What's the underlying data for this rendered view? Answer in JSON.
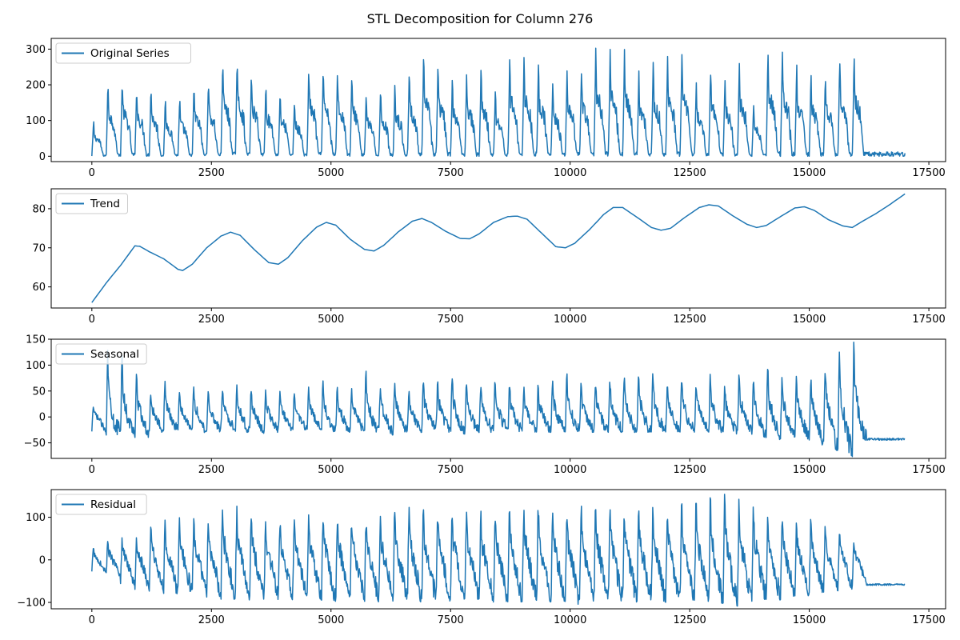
{
  "figure": {
    "title": "STL Decomposition for Column 276"
  },
  "colors": {
    "series": "#1f77b4",
    "axis": "#000000",
    "legend_border": "#cccccc"
  },
  "chart_data": [
    {
      "type": "line",
      "name": "original",
      "legend": "Original Series",
      "xlim": [
        -850,
        17850
      ],
      "ylim": [
        -15,
        330
      ],
      "x_ticks": [
        0,
        2500,
        5000,
        7500,
        10000,
        12500,
        15000,
        17500
      ],
      "y_ticks": [
        0,
        100,
        200,
        300
      ],
      "x_range": [
        0,
        17000
      ],
      "n_points": 1700,
      "cycle_length": 300,
      "cycle_min": 0,
      "peaks": [
        100,
        215,
        225,
        205,
        200,
        160,
        165,
        205,
        215,
        270,
        275,
        240,
        200,
        185,
        160,
        260,
        250,
        255,
        235,
        180,
        190,
        210,
        240,
        285,
        260,
        220,
        240,
        250,
        190,
        280,
        285,
        265,
        205,
        245,
        250,
        310,
        300,
        300,
        240,
        265,
        285,
        290,
        210,
        260,
        230,
        265,
        145,
        310,
        295,
        260,
        240,
        240,
        285,
        290
      ],
      "grid": false,
      "legend_position": "upper-left"
    },
    {
      "type": "line",
      "name": "trend",
      "legend": "Trend",
      "xlim": [
        -850,
        17850
      ],
      "ylim": [
        54.6,
        85.1
      ],
      "x_ticks": [
        0,
        2500,
        5000,
        7500,
        10000,
        12500,
        15000,
        17500
      ],
      "y_ticks": [
        60,
        70,
        80
      ],
      "x": [
        0,
        300,
        600,
        900,
        1000,
        1200,
        1500,
        1800,
        1900,
        2100,
        2400,
        2700,
        2900,
        3100,
        3400,
        3700,
        3900,
        4100,
        4400,
        4700,
        4900,
        5100,
        5400,
        5700,
        5900,
        6100,
        6400,
        6700,
        6900,
        7100,
        7400,
        7700,
        7900,
        8100,
        8400,
        8700,
        8900,
        9100,
        9400,
        9700,
        9900,
        10100,
        10400,
        10700,
        10900,
        11100,
        11400,
        11700,
        11900,
        12100,
        12400,
        12700,
        12900,
        13100,
        13400,
        13700,
        13900,
        14100,
        14400,
        14700,
        14900,
        15100,
        15400,
        15700,
        15900,
        16100,
        16400,
        16700,
        17000
      ],
      "y": [
        56,
        61,
        65.5,
        70.5,
        70.4,
        69,
        67.2,
        64.5,
        64.2,
        65.8,
        70,
        73,
        74,
        73.2,
        69.5,
        66.2,
        65.8,
        67.5,
        71.8,
        75.3,
        76.5,
        75.8,
        72.2,
        69.6,
        69.2,
        70.6,
        74,
        76.8,
        77.5,
        76.5,
        74.2,
        72.4,
        72.3,
        73.6,
        76.5,
        78,
        78.1,
        77.3,
        73.8,
        70.3,
        70,
        71.2,
        74.6,
        78.5,
        80.3,
        80.3,
        77.8,
        75.2,
        74.5,
        75,
        77.8,
        80.3,
        81,
        80.7,
        78.2,
        76,
        75.2,
        75.7,
        78,
        80.2,
        80.5,
        79.6,
        77.2,
        75.6,
        75.2,
        76.7,
        78.8,
        81.2,
        83.8
      ],
      "grid": false,
      "legend_position": "upper-left"
    },
    {
      "type": "line",
      "name": "seasonal",
      "legend": "Seasonal",
      "xlim": [
        -850,
        17850
      ],
      "ylim": [
        -80,
        150
      ],
      "x_ticks": [
        0,
        2500,
        5000,
        7500,
        10000,
        12500,
        15000,
        17500
      ],
      "y_ticks": [
        -50,
        0,
        50,
        100,
        150
      ],
      "x_range": [
        0,
        17000
      ],
      "n_points": 1700,
      "cycle_length": 300,
      "peaks": [
        20,
        130,
        120,
        95,
        50,
        70,
        50,
        60,
        55,
        60,
        65,
        60,
        55,
        50,
        45,
        60,
        70,
        60,
        55,
        90,
        60,
        70,
        55,
        80,
        80,
        85,
        75,
        70,
        80,
        70,
        60,
        65,
        80,
        85,
        80,
        75,
        80,
        85,
        85,
        95,
        70,
        80,
        75,
        85,
        70,
        90,
        75,
        100,
        80,
        85,
        75,
        100,
        140,
        145
      ],
      "troughs": [
        -30,
        -35,
        -35,
        -40,
        -30,
        -25,
        -25,
        -30,
        -30,
        -25,
        -30,
        -35,
        -30,
        -30,
        -25,
        -25,
        -30,
        -30,
        -30,
        -30,
        -35,
        -30,
        -30,
        -25,
        -30,
        -35,
        -30,
        -30,
        -25,
        -30,
        -30,
        -30,
        -30,
        -30,
        -30,
        -30,
        -30,
        -30,
        -30,
        -30,
        -30,
        -30,
        -30,
        -30,
        -35,
        -35,
        -40,
        -45,
        -40,
        -45,
        -55,
        -65,
        -78,
        -45
      ],
      "grid": false,
      "legend_position": "upper-left"
    },
    {
      "type": "line",
      "name": "residual",
      "legend": "Residual",
      "xlim": [
        -850,
        17850
      ],
      "ylim": [
        -115,
        165
      ],
      "x_ticks": [
        0,
        2500,
        5000,
        7500,
        10000,
        12500,
        15000,
        17500
      ],
      "y_ticks": [
        -100,
        0,
        100
      ],
      "x_range": [
        0,
        17000
      ],
      "n_points": 1700,
      "cycle_length": 300,
      "peaks": [
        30,
        50,
        55,
        60,
        80,
        95,
        100,
        105,
        100,
        135,
        130,
        115,
        100,
        95,
        95,
        110,
        120,
        110,
        100,
        95,
        110,
        120,
        125,
        130,
        125,
        130,
        120,
        115,
        125,
        135,
        140,
        135,
        125,
        130,
        140,
        150,
        145,
        140,
        135,
        130,
        130,
        135,
        140,
        150,
        160,
        145,
        140,
        125,
        110,
        100,
        95,
        80,
        60,
        40
      ],
      "troughs": [
        -30,
        -40,
        -60,
        -70,
        -75,
        -80,
        -85,
        -80,
        -90,
        -95,
        -95,
        -100,
        -95,
        -95,
        -90,
        -95,
        -100,
        -100,
        -95,
        -100,
        -100,
        -95,
        -100,
        -95,
        -100,
        -100,
        -95,
        -100,
        -100,
        -100,
        -95,
        -100,
        -100,
        -105,
        -100,
        -95,
        -100,
        -100,
        -95,
        -100,
        -100,
        -95,
        -100,
        -105,
        -110,
        -100,
        -95,
        -95,
        -90,
        -85,
        -80,
        -75,
        -70,
        -60
      ],
      "grid": false,
      "legend_position": "upper-left"
    }
  ]
}
